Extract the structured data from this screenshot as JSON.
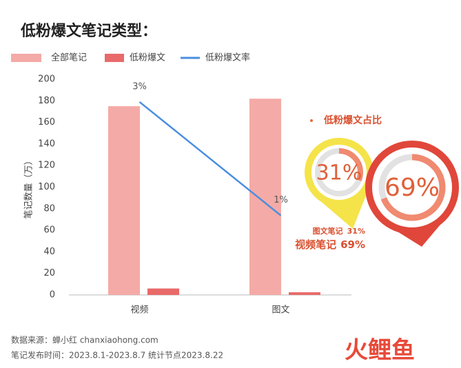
{
  "chart_data": {
    "type": "bar",
    "title": "低粉爆文笔记类型：",
    "categories": [
      "视频",
      "图文"
    ],
    "series": [
      {
        "name": "全部笔记",
        "color": "#f4aaa6",
        "values": [
          175,
          182
        ]
      },
      {
        "name": "低粉爆文",
        "color": "#e86a6a",
        "values": [
          6,
          2.5
        ]
      },
      {
        "name": "低粉爆文率",
        "color": "#4a8ee0",
        "type": "line",
        "axis": "y2",
        "values": [
          3,
          1
        ],
        "value_labels": [
          "3%",
          "1%"
        ]
      }
    ],
    "ylabel": "笔记数量（万）",
    "ylim": [
      0,
      200
    ],
    "yticks": [
      0,
      20,
      40,
      60,
      80,
      100,
      120,
      140,
      160,
      180,
      200
    ],
    "y2lim": [
      -0.4,
      3.4
    ],
    "legend": "top-left"
  },
  "share": {
    "title": "低粉爆文占比",
    "items": [
      {
        "name": "图文笔记",
        "value": 31,
        "label": "31%",
        "color": "#f5e34a"
      },
      {
        "name": "视频笔记",
        "value": 69,
        "label": "69%",
        "color": "#e0473a"
      }
    ]
  },
  "footer": {
    "source": "数据来源：蝉小红 chanxiaohong.com",
    "period": "笔记发布时间：2023.8.1-2023.8.7 统计节点2023.8.22",
    "logo": "火鲤鱼"
  }
}
